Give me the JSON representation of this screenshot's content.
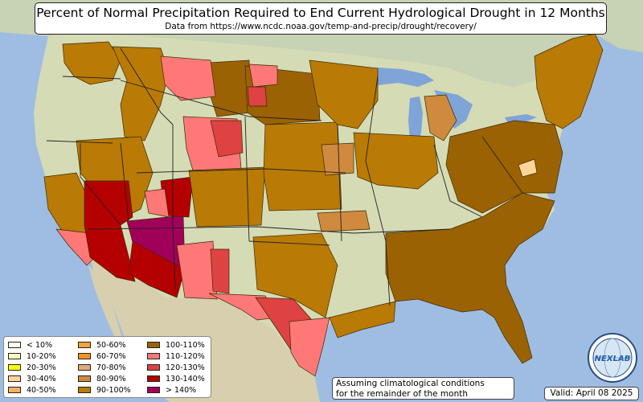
{
  "title": "Percent of Normal Precipitation Required to End Current Hydrological Drought in 12 Months",
  "subtitle": "Data from https://www.ncdc.noaa.gov/temp-and-precip/drought/recovery/",
  "legend": {
    "items": [
      {
        "label": "< 10%",
        "color": "#fffff0"
      },
      {
        "label": "10-20%",
        "color": "#ffffc0"
      },
      {
        "label": "20-30%",
        "color": "#ffff00"
      },
      {
        "label": "30-40%",
        "color": "#ffd59a"
      },
      {
        "label": "40-50%",
        "color": "#ffb060"
      },
      {
        "label": "50-60%",
        "color": "#f6a33a"
      },
      {
        "label": "60-70%",
        "color": "#f29421"
      },
      {
        "label": "70-80%",
        "color": "#e0aa77"
      },
      {
        "label": "80-90%",
        "color": "#cf8a3e"
      },
      {
        "label": "90-100%",
        "color": "#b97a06"
      },
      {
        "label": "100-110%",
        "color": "#9b6204"
      },
      {
        "label": "110-120%",
        "color": "#ff7878"
      },
      {
        "label": "120-130%",
        "color": "#de4242"
      },
      {
        "label": "130-140%",
        "color": "#b40000"
      },
      {
        "label": "> 140%",
        "color": "#a0005a"
      }
    ]
  },
  "note": {
    "line1": "Assuming climatological conditions",
    "line2": "for the remainder of the month"
  },
  "valid": "Valid: April 08 2025",
  "logo": {
    "text": "NEXLAB",
    "icon": "nexlab-globe-logo"
  },
  "colors": {
    "ocean": "#9fbde3",
    "land": "#d5dbb5",
    "canada": "#c8d2b4",
    "mexico": "#d7cfae",
    "lakes": "#7ea4d8"
  }
}
